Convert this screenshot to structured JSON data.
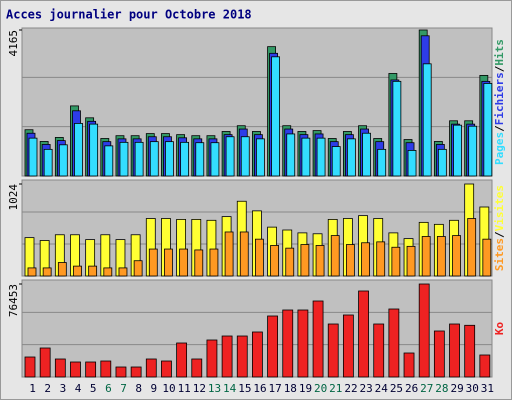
{
  "title": "Acces journalier pour Octobre 2018",
  "separator": "/",
  "chart_data": [
    {
      "type": "bar",
      "ylim": [
        0,
        4165
      ],
      "yticks": [
        4165
      ],
      "series": [
        {
          "name": "Hits",
          "color": "#339966",
          "values": [
            1320,
            985,
            1100,
            2000,
            1660,
            1070,
            1150,
            1150,
            1210,
            1210,
            1180,
            1150,
            1150,
            1270,
            1435,
            1270,
            3690,
            1435,
            1270,
            1295,
            1070,
            1270,
            1435,
            1070,
            2925,
            1040,
            4165,
            985,
            1575,
            1575,
            2870
          ]
        },
        {
          "name": "Fichiers",
          "color": "#2d3ce8",
          "values": [
            1220,
            900,
            1010,
            1860,
            1560,
            980,
            1060,
            1060,
            1120,
            1120,
            1090,
            1060,
            1060,
            1180,
            1340,
            1180,
            3500,
            1340,
            1180,
            1200,
            980,
            1180,
            1340,
            980,
            2740,
            950,
            4000,
            900,
            1480,
            1480,
            2700
          ]
        },
        {
          "name": "Pages",
          "color": "#33ddff",
          "values": [
            1080,
            760,
            890,
            1500,
            1480,
            860,
            960,
            960,
            980,
            980,
            960,
            950,
            950,
            1120,
            1120,
            1060,
            3400,
            1200,
            1080,
            1080,
            840,
            1060,
            1220,
            760,
            2700,
            730,
            3200,
            760,
            1450,
            1420,
            2640
          ]
        }
      ]
    },
    {
      "type": "bar",
      "ylim": [
        0,
        1024
      ],
      "yticks": [
        1024
      ],
      "series": [
        {
          "name": "Visites",
          "color": "#ffff33",
          "values": [
            427,
            395,
            459,
            459,
            405,
            459,
            405,
            459,
            640,
            640,
            630,
            630,
            620,
            661,
            832,
            725,
            544,
            512,
            480,
            470,
            630,
            640,
            672,
            640,
            480,
            416,
            597,
            575,
            620,
            1024,
            768
          ]
        },
        {
          "name": "Sites",
          "color": "#ff9922",
          "values": [
            90,
            90,
            150,
            110,
            110,
            90,
            90,
            170,
            300,
            300,
            300,
            290,
            300,
            490,
            490,
            410,
            340,
            310,
            350,
            340,
            450,
            350,
            370,
            380,
            320,
            330,
            440,
            440,
            450,
            640,
            410
          ]
        }
      ]
    },
    {
      "type": "bar",
      "ylim": [
        0,
        76453
      ],
      "yticks": [
        76453
      ],
      "categories": [
        "1",
        "2",
        "3",
        "4",
        "5",
        "6",
        "7",
        "8",
        "9",
        "10",
        "11",
        "12",
        "13",
        "14",
        "15",
        "16",
        "17",
        "18",
        "19",
        "20",
        "21",
        "22",
        "23",
        "24",
        "25",
        "26",
        "27",
        "28",
        "29",
        "30",
        "31"
      ],
      "category_colors": [
        "#000033",
        "#000033",
        "#000033",
        "#000033",
        "#000033",
        "#006644",
        "#006644",
        "#000033",
        "#000033",
        "#000033",
        "#000033",
        "#000033",
        "#006644",
        "#006644",
        "#000033",
        "#000033",
        "#000033",
        "#000033",
        "#000033",
        "#006644",
        "#006644",
        "#000033",
        "#000033",
        "#000033",
        "#000033",
        "#000033",
        "#006644",
        "#006644",
        "#000033",
        "#000033",
        "#000033"
      ],
      "series": [
        {
          "name": "Ko",
          "color": "#ee2222",
          "values": [
            16440,
            23840,
            14800,
            12330,
            12330,
            13150,
            8220,
            8220,
            14800,
            13150,
            27950,
            14800,
            30420,
            33700,
            33700,
            37000,
            50150,
            55080,
            55080,
            62480,
            43570,
            50970,
            70700,
            43570,
            55900,
            19730,
            76453,
            37820,
            43570,
            42500,
            18090
          ]
        }
      ]
    }
  ]
}
